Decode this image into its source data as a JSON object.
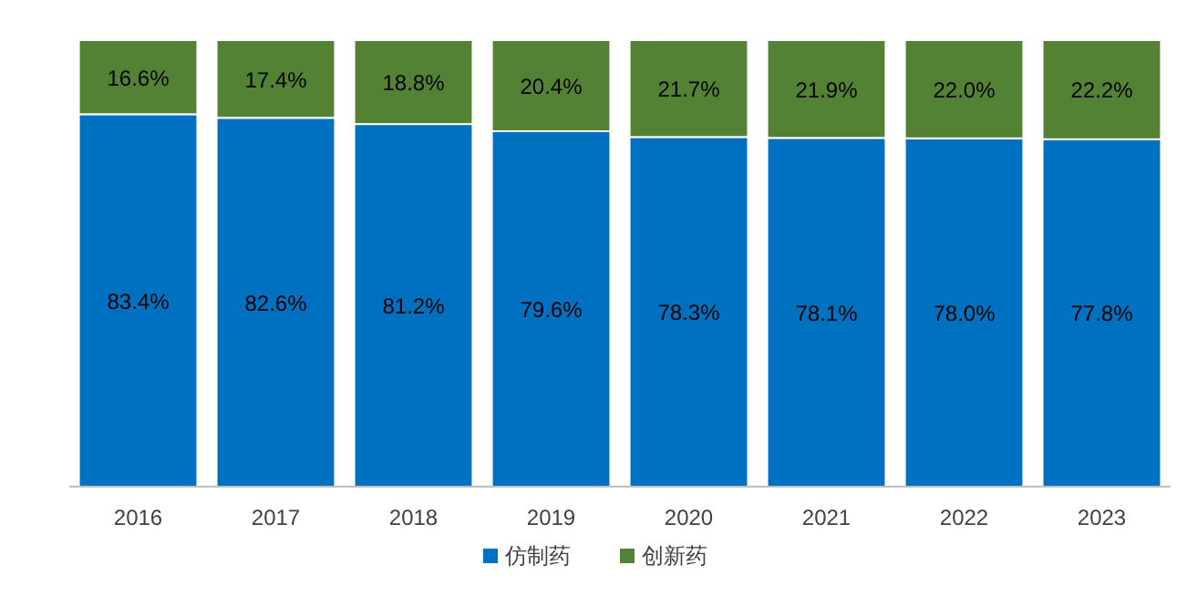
{
  "chart_data": {
    "type": "bar",
    "stacked": true,
    "legend": "bottom",
    "categories": [
      "2016",
      "2017",
      "2018",
      "2019",
      "2020",
      "2021",
      "2022",
      "2023"
    ],
    "series": [
      {
        "name": "仿制药",
        "color": "#0070c0",
        "values": [
          83.4,
          82.6,
          81.2,
          79.6,
          78.3,
          78.1,
          78.0,
          77.8
        ],
        "value_labels": [
          "83.4%",
          "82.6%",
          "81.2%",
          "79.6%",
          "78.3%",
          "78.1%",
          "78.0%",
          "77.8%"
        ]
      },
      {
        "name": "创新药",
        "color": "#548235",
        "values": [
          16.6,
          17.4,
          18.8,
          20.4,
          21.7,
          21.9,
          22.0,
          22.2
        ],
        "value_labels": [
          "16.6%",
          "17.4%",
          "18.8%",
          "20.4%",
          "21.7%",
          "21.9%",
          "22.0%",
          "22.2%"
        ]
      }
    ]
  }
}
